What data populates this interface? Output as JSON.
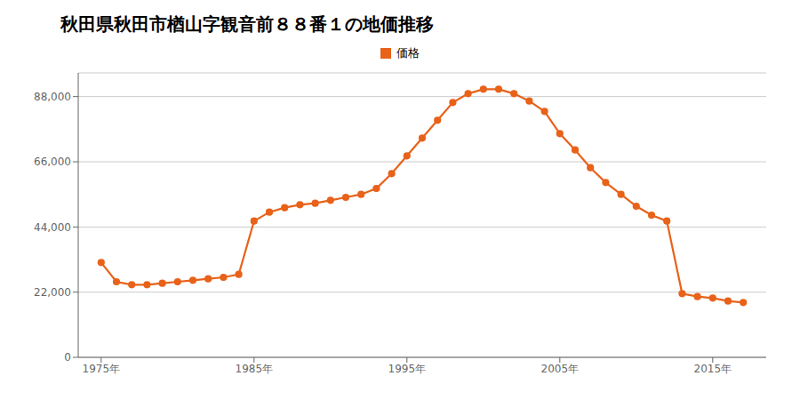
{
  "chart_data": {
    "type": "line",
    "title": "秋田県秋田市楢山字観音前８８番１の地価推移",
    "x": [
      1975,
      1976,
      1977,
      1978,
      1979,
      1980,
      1981,
      1982,
      1983,
      1984,
      1985,
      1986,
      1987,
      1988,
      1989,
      1990,
      1991,
      1992,
      1993,
      1994,
      1995,
      1996,
      1997,
      1998,
      1999,
      2000,
      2001,
      2002,
      2003,
      2004,
      2005,
      2006,
      2007,
      2008,
      2009,
      2010,
      2011,
      2012,
      2013,
      2014,
      2015,
      2016,
      2017
    ],
    "series": [
      {
        "name": "価格",
        "color": "#e8621a",
        "marker": "circle",
        "values": [
          32000,
          25500,
          24500,
          24500,
          25000,
          25500,
          26000,
          26500,
          27000,
          28000,
          46000,
          49000,
          50500,
          51500,
          52000,
          53000,
          54000,
          55000,
          57000,
          62000,
          68000,
          74000,
          80000,
          86000,
          89000,
          90500,
          90500,
          89000,
          86500,
          83000,
          75500,
          70000,
          64000,
          59000,
          55000,
          51000,
          48000,
          46000,
          21500,
          20500,
          20000,
          19000,
          18500
        ]
      }
    ],
    "xlim": [
      1973.5,
      2018.5
    ],
    "xticks": [
      {
        "value": 1975,
        "label": "1975年"
      },
      {
        "value": 1985,
        "label": "1985年"
      },
      {
        "value": 1995,
        "label": "1995年"
      },
      {
        "value": 2005,
        "label": "2005年"
      },
      {
        "value": 2015,
        "label": "2015年"
      }
    ],
    "ylim": [
      0,
      96000
    ],
    "yticks": [
      0,
      {
        "value": 22000,
        "label": "22,000"
      },
      {
        "value": 44000,
        "label": "44,000"
      },
      {
        "value": 66000,
        "label": "66,000"
      },
      {
        "value": 88000,
        "label": "88,000"
      }
    ],
    "grid": "y",
    "legend": "top"
  }
}
